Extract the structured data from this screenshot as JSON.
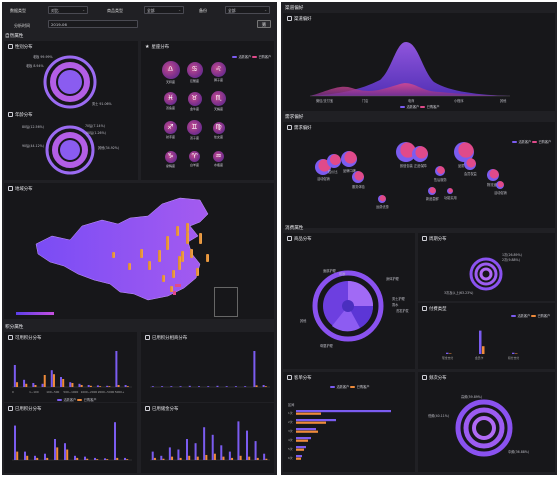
{
  "filters": {
    "data_type_label": "数据类型",
    "data_type_value": "对比",
    "product_type_label": "商品类型",
    "product_type_value": "全部",
    "store_label": "备份",
    "store_value": "全部",
    "analysis_time_label": "分析时间",
    "analysis_time_value": "2019-06",
    "apply_button": "筛"
  },
  "left": {
    "natural_section": "自然属性",
    "gender": {
      "title": "性别分布",
      "labels": [
        "老板 99.99%",
        "老板 8.94%",
        "男士 91.06%"
      ]
    },
    "age": {
      "title": "年龄分布",
      "labels": [
        "80后(12.56%)",
        "70后(7.14%)",
        "90后(44.12%)",
        "00后(1.26%)",
        "其他(34.92%)"
      ]
    },
    "constellation": {
      "title": "星座分布",
      "legend": [
        "活跃客户",
        "已购客户"
      ],
      "signs": [
        {
          "sym": "♎",
          "name": "天秤座"
        },
        {
          "sym": "♋",
          "name": "巨蟹座"
        },
        {
          "sym": "♌",
          "name": "狮子座"
        },
        {
          "sym": "♓",
          "name": "双鱼座"
        },
        {
          "sym": "♉",
          "name": "金牛座"
        },
        {
          "sym": "♏",
          "name": "天蝎座"
        },
        {
          "sym": "♐",
          "name": "射手座"
        },
        {
          "sym": "♊",
          "name": "双子座"
        },
        {
          "sym": "♍",
          "name": "处女座"
        },
        {
          "sym": "♑",
          "name": "摩羯座"
        },
        {
          "sym": "♈",
          "name": "白羊座"
        },
        {
          "sym": "♒",
          "name": "水瓶座"
        }
      ]
    },
    "region": {
      "title": "地域分布"
    },
    "points_section": "积分属性",
    "available_points": {
      "title": "可用积分分布",
      "ticks": [
        "0",
        "1~100",
        "100~500",
        "500~1000",
        "1000~2000",
        "2000~5000",
        "5000+"
      ]
    },
    "used_points_merchant": {
      "title": "已用积分相商分布"
    },
    "used_points": {
      "title": "已用积分分布"
    },
    "used_amount": {
      "title": "已用储金分布"
    },
    "legend_small": [
      "活跃客户",
      "已购客户"
    ]
  },
  "right": {
    "channel_section": "渠道偏好",
    "channel": {
      "title": "渠道偏好",
      "categories": [
        "微信/支付宝",
        "门店",
        "电商",
        "小程序",
        "其他"
      ]
    },
    "demand_section": "需求偏好",
    "demand": {
      "title": "需求偏好",
      "legend": [
        "活跃客户",
        "已购客户"
      ],
      "bubbles": [
        "活动促销",
        "性价比",
        "品牌口碑",
        "服务体验",
        "运费优惠",
        "颜值包装",
        "正品保障",
        "售后服务",
        "新品尝鲜",
        "功能实用",
        "品质材料",
        "会员权益",
        "物流速度"
      ]
    },
    "consume_section": "消费属性",
    "product": {
      "title": "商品分布",
      "labels": [
        "面部护理",
        "彩妆",
        "身体护理",
        "男士护理",
        "香水",
        "洗发护发",
        "其他",
        "母婴护理"
      ]
    },
    "period": {
      "title": "周期分布",
      "labels": [
        "1次(26.89%)",
        "2次(9.88%)",
        "3次及以上(63.23%)"
      ]
    },
    "payment": {
      "title": "付费类型",
      "legend": [
        "活跃客户",
        "已购客户"
      ],
      "categories": [
        "现金支付",
        "会员卡",
        "积分支付"
      ]
    },
    "amount": {
      "title": "客单分布",
      "legend": [
        "活跃客户",
        "已购客户"
      ],
      "ylabel": "区间",
      "categories": [
        "1次",
        "2次",
        "3次",
        "4次",
        "5次",
        "6次"
      ]
    },
    "frequency": {
      "title": "频次分布",
      "labels": [
        "高频(59.89%)",
        "低频(40.11%)",
        "中频(36.88%)"
      ]
    }
  },
  "colors": {
    "purple": "#7b5cf0",
    "magenta": "#e04a8a",
    "orange": "#ef8b3a",
    "dark": "#202024"
  }
}
